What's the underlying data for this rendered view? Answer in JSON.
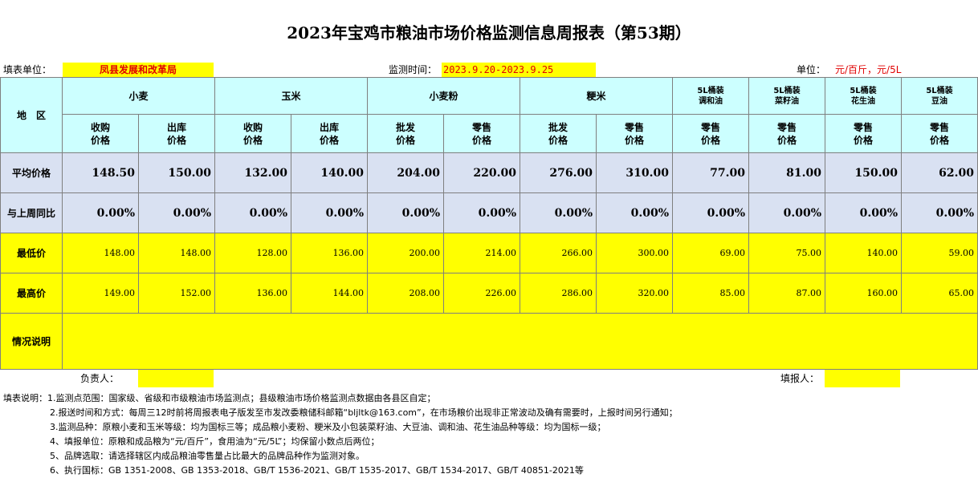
{
  "title": "2023年宝鸡市粮油市场价格监测信息周报表（第53期）",
  "info": {
    "unit_label": "填表单位：",
    "unit_value": "凤县发展和改革局",
    "time_label": "监测时间：",
    "time_value": "2023.9.20-2023.9.25",
    "measure_label": "单位：",
    "measure_value": "元/百斤，元/5L"
  },
  "table": {
    "region_header": "地　区",
    "groups": [
      {
        "name": "小麦",
        "subs": [
          "收购\n价格",
          "出库\n价格"
        ]
      },
      {
        "name": "玉米",
        "subs": [
          "收购\n价格",
          "出库\n价格"
        ]
      },
      {
        "name": "小麦粉",
        "subs": [
          "批发\n价格",
          "零售\n价格"
        ]
      },
      {
        "name": "粳米",
        "subs": [
          "批发\n价格",
          "零售\n价格"
        ]
      },
      {
        "name": "5L桶装\n调和油",
        "subs": [
          "零售\n价格"
        ]
      },
      {
        "name": "5L桶装\n菜籽油",
        "subs": [
          "零售\n价格"
        ]
      },
      {
        "name": "5L桶装\n花生油",
        "subs": [
          "零售\n价格"
        ]
      },
      {
        "name": "5L桶装\n豆油",
        "subs": [
          "零售\n价格"
        ]
      }
    ],
    "rows": [
      {
        "label": "平均价格",
        "style": "big",
        "values": [
          "148.50",
          "150.00",
          "132.00",
          "140.00",
          "204.00",
          "220.00",
          "276.00",
          "310.00",
          "77.00",
          "81.00",
          "150.00",
          "62.00"
        ]
      },
      {
        "label": "与上周同比",
        "style": "big",
        "values": [
          "0.00%",
          "0.00%",
          "0.00%",
          "0.00%",
          "0.00%",
          "0.00%",
          "0.00%",
          "0.00%",
          "0.00%",
          "0.00%",
          "0.00%",
          "0.00%"
        ]
      },
      {
        "label": "最低价",
        "style": "small",
        "values": [
          "148.00",
          "148.00",
          "128.00",
          "136.00",
          "200.00",
          "214.00",
          "266.00",
          "300.00",
          "69.00",
          "75.00",
          "140.00",
          "59.00"
        ]
      },
      {
        "label": "最高价",
        "style": "small",
        "values": [
          "149.00",
          "152.00",
          "136.00",
          "144.00",
          "208.00",
          "226.00",
          "286.00",
          "320.00",
          "85.00",
          "87.00",
          "160.00",
          "65.00"
        ]
      }
    ],
    "remark_label": "情况说明",
    "remark_value": ""
  },
  "sign": {
    "responsible_label": "负责人：",
    "responsible_value": "",
    "filler_label": "填报人：",
    "filler_value": ""
  },
  "notes": [
    "填表说明：1.监测点范围：国家级、省级和市级粮油市场监测点；县级粮油市场价格监测点数据由各县区自定；",
    "2.报送时间和方式：每周三12时前将周报表电子版发至市发改委粮储科邮箱“bljltk@163.com”，在市场粮价出现非正常波动及确有需要时，上报时间另行通知；",
    "3.监测品种：原粮小麦和玉米等级：均为国标三等；成品粮小麦粉、粳米及小包装菜籽油、大豆油、调和油、花生油品种等级：均为国标一级；",
    "4、填报单位：原粮和成品粮为“元/百斤”，食用油为“元/5L”；均保留小数点后两位；",
    "5、品牌选取：请选择辖区内成品粮油零售量占比最大的品牌品种作为监测对象。",
    "6、执行国标：GB 1351-2008、GB 1353-2018、GB/T 1536-2021、GB/T 1535-2017、GB/T 1534-2017、GB/T 40851-2021等"
  ]
}
